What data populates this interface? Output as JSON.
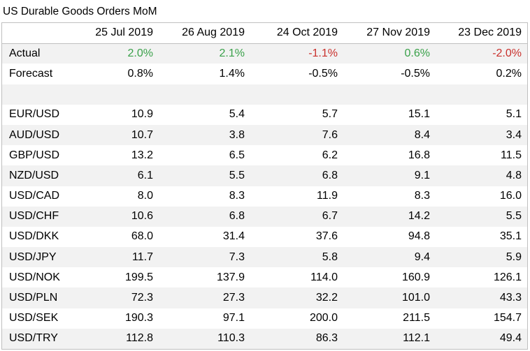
{
  "title": "US Durable Goods Orders MoM",
  "columns": [
    "25 Jul 2019",
    "26 Aug 2019",
    "24 Oct 2019",
    "27 Nov 2019",
    "23 Dec 2019"
  ],
  "colors": {
    "positive": "#3aa14a",
    "negative": "#c9302c",
    "band": "#f2f2f2",
    "border": "#bfbfbf"
  },
  "rows": [
    {
      "label": "Actual",
      "values": [
        "2.0%",
        "2.1%",
        "-1.1%",
        "0.6%",
        "-2.0%"
      ],
      "signs": [
        "pos",
        "pos",
        "neg",
        "pos",
        "neg"
      ]
    },
    {
      "label": "Forecast",
      "values": [
        "0.8%",
        "1.4%",
        "-0.5%",
        "-0.5%",
        "0.2%"
      ]
    },
    {
      "label": "",
      "values": [
        "",
        "",
        "",
        "",
        ""
      ]
    },
    {
      "label": "EUR/USD",
      "values": [
        "10.9",
        "5.4",
        "5.7",
        "15.1",
        "5.1"
      ]
    },
    {
      "label": "AUD/USD",
      "values": [
        "10.7",
        "3.8",
        "7.6",
        "8.4",
        "3.4"
      ]
    },
    {
      "label": "GBP/USD",
      "values": [
        "13.2",
        "6.5",
        "6.2",
        "16.8",
        "11.5"
      ]
    },
    {
      "label": "NZD/USD",
      "values": [
        "6.1",
        "5.5",
        "6.8",
        "9.1",
        "4.8"
      ]
    },
    {
      "label": "USD/CAD",
      "values": [
        "8.0",
        "8.3",
        "11.9",
        "8.3",
        "16.0"
      ]
    },
    {
      "label": "USD/CHF",
      "values": [
        "10.6",
        "6.8",
        "6.7",
        "14.2",
        "5.5"
      ]
    },
    {
      "label": "USD/DKK",
      "values": [
        "68.0",
        "31.4",
        "37.6",
        "94.8",
        "35.1"
      ]
    },
    {
      "label": "USD/JPY",
      "values": [
        "11.7",
        "7.3",
        "5.8",
        "9.4",
        "5.9"
      ]
    },
    {
      "label": "USD/NOK",
      "values": [
        "199.5",
        "137.9",
        "114.0",
        "160.9",
        "126.1"
      ]
    },
    {
      "label": "USD/PLN",
      "values": [
        "72.3",
        "27.3",
        "32.2",
        "101.0",
        "43.3"
      ]
    },
    {
      "label": "USD/SEK",
      "values": [
        "190.3",
        "97.1",
        "200.0",
        "211.5",
        "154.7"
      ]
    },
    {
      "label": "USD/TRY",
      "values": [
        "112.8",
        "110.3",
        "86.3",
        "112.1",
        "49.4"
      ]
    }
  ]
}
